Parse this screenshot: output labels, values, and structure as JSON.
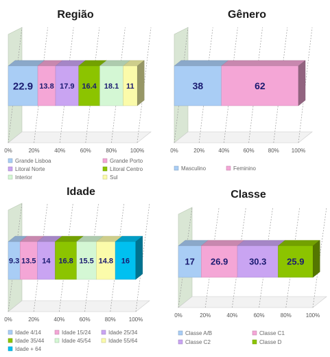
{
  "chart_data": [
    {
      "type": "bar",
      "stacked": true,
      "orientation": "horizontal",
      "title": "Região",
      "xlim": [
        0,
        100
      ],
      "xticks": [
        "0%",
        "20%",
        "40%",
        "60%",
        "80%",
        "100%"
      ],
      "legend_position": "bottom",
      "grid": true,
      "series": [
        {
          "name": "Grande Lisboa",
          "value": 22.9,
          "label": "22.9",
          "color": "#a9cdf5"
        },
        {
          "name": "Grande Porto",
          "value": 13.8,
          "label": "13.8",
          "color": "#f4a6d6"
        },
        {
          "name": "Litoral Norte",
          "value": 17.9,
          "label": "17.9",
          "color": "#c9a4f2"
        },
        {
          "name": "Litoral Centro",
          "value": 16.4,
          "label": "16.4",
          "color": "#8cc400"
        },
        {
          "name": "Interior",
          "value": 18.1,
          "label": "18.1",
          "color": "#d4f7d4"
        },
        {
          "name": "Sul",
          "value": 11,
          "label": "11",
          "color": "#fbfbaa"
        }
      ]
    },
    {
      "type": "bar",
      "stacked": true,
      "orientation": "horizontal",
      "title": "Gênero",
      "xlim": [
        0,
        100
      ],
      "xticks": [
        "0%",
        "20%",
        "40%",
        "60%",
        "80%",
        "100%"
      ],
      "legend_position": "bottom",
      "grid": true,
      "series": [
        {
          "name": "Masculino",
          "value": 38,
          "label": "38",
          "color": "#a9cdf5"
        },
        {
          "name": "Feminino",
          "value": 62,
          "label": "62",
          "color": "#f4a6d6"
        }
      ]
    },
    {
      "type": "bar",
      "stacked": true,
      "orientation": "horizontal",
      "title": "Idade",
      "xlim": [
        0,
        100
      ],
      "xticks": [
        "0%",
        "20%",
        "40%",
        "60%",
        "80%",
        "100%"
      ],
      "legend_position": "bottom",
      "grid": true,
      "series": [
        {
          "name": "Idade 4/14",
          "value": 9.3,
          "label": "9.3",
          "color": "#a9cdf5"
        },
        {
          "name": "Idade 15/24",
          "value": 13.5,
          "label": "13.5",
          "color": "#f4a6d6"
        },
        {
          "name": "Idade 25/34",
          "value": 14,
          "label": "14",
          "color": "#c9a4f2"
        },
        {
          "name": "Idade 35/44",
          "value": 16.8,
          "label": "16.8",
          "color": "#8cc400"
        },
        {
          "name": "Idade 45/54",
          "value": 15.5,
          "label": "15.5",
          "color": "#d4f7d4"
        },
        {
          "name": "Idade 55/64",
          "value": 14.8,
          "label": "14.8",
          "color": "#fbfbaa"
        },
        {
          "name": "Idade + 64",
          "value": 16,
          "label": "16",
          "color": "#00c0f0"
        }
      ]
    },
    {
      "type": "bar",
      "stacked": true,
      "orientation": "horizontal",
      "title": "Classe",
      "xlim": [
        0,
        100
      ],
      "xticks": [
        "0%",
        "20%",
        "40%",
        "60%",
        "80%",
        "100%"
      ],
      "legend_position": "bottom",
      "grid": true,
      "series": [
        {
          "name": "Classe A/B",
          "value": 17,
          "label": "17",
          "color": "#a9cdf5"
        },
        {
          "name": "Classe C1",
          "value": 26.9,
          "label": "26.9",
          "color": "#f4a6d6"
        },
        {
          "name": "Classe C2",
          "value": 30.3,
          "label": "30.3",
          "color": "#c9a4f2"
        },
        {
          "name": "Classe D",
          "value": 25.9,
          "label": "25.9",
          "color": "#8cc400"
        }
      ]
    }
  ]
}
